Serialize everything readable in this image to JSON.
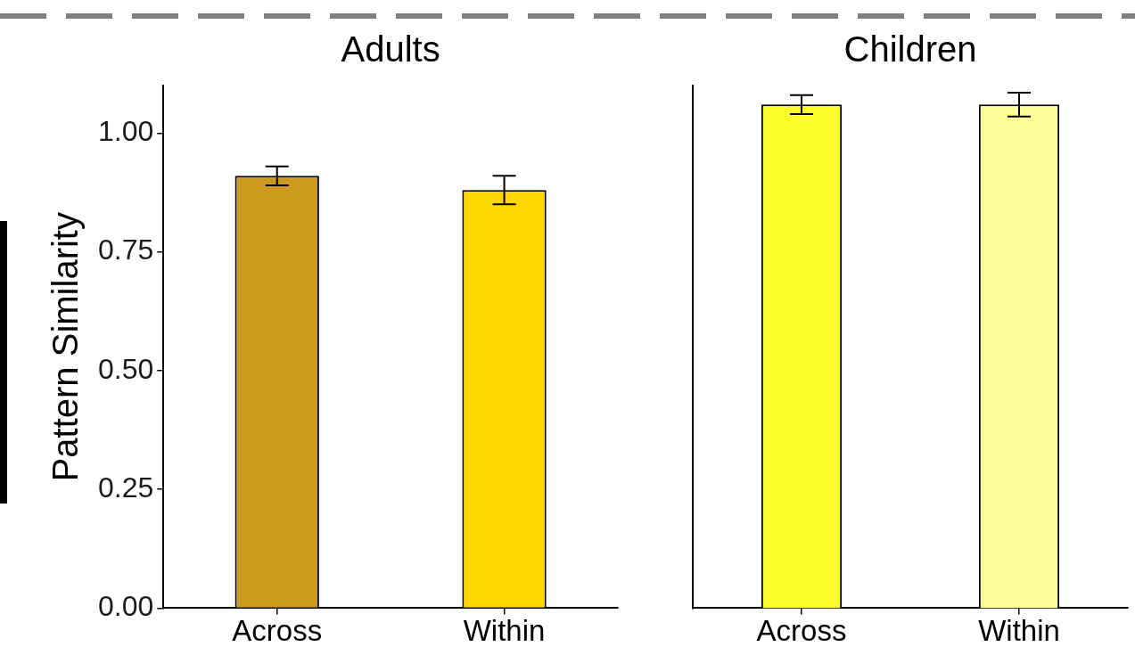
{
  "chart_data": [
    {
      "type": "bar",
      "title": "Adults",
      "ylabel": "Pattern Similarity",
      "categories": [
        "Across",
        "Within"
      ],
      "values": [
        0.91,
        0.88
      ],
      "errors": [
        0.02,
        0.03
      ],
      "colors": [
        "#cc9a1e",
        "#ffd700"
      ],
      "ylim": [
        0,
        1.1
      ],
      "yticks": [
        {
          "value": 0,
          "label": "0.00"
        },
        0.25,
        {
          "value": 0.5,
          "label": "0.50"
        },
        0.75,
        {
          "value": 1,
          "label": "1.00"
        }
      ],
      "grid": false
    },
    {
      "type": "bar",
      "title": "Children",
      "categories": [
        "Across",
        "Within"
      ],
      "values": [
        1.06,
        1.06
      ],
      "errors": [
        0.02,
        0.025
      ],
      "colors": [
        "#ffff2e",
        "#ffff99"
      ],
      "ylim": [
        0,
        1.1
      ],
      "grid": false,
      "tick_labels": "x"
    }
  ]
}
